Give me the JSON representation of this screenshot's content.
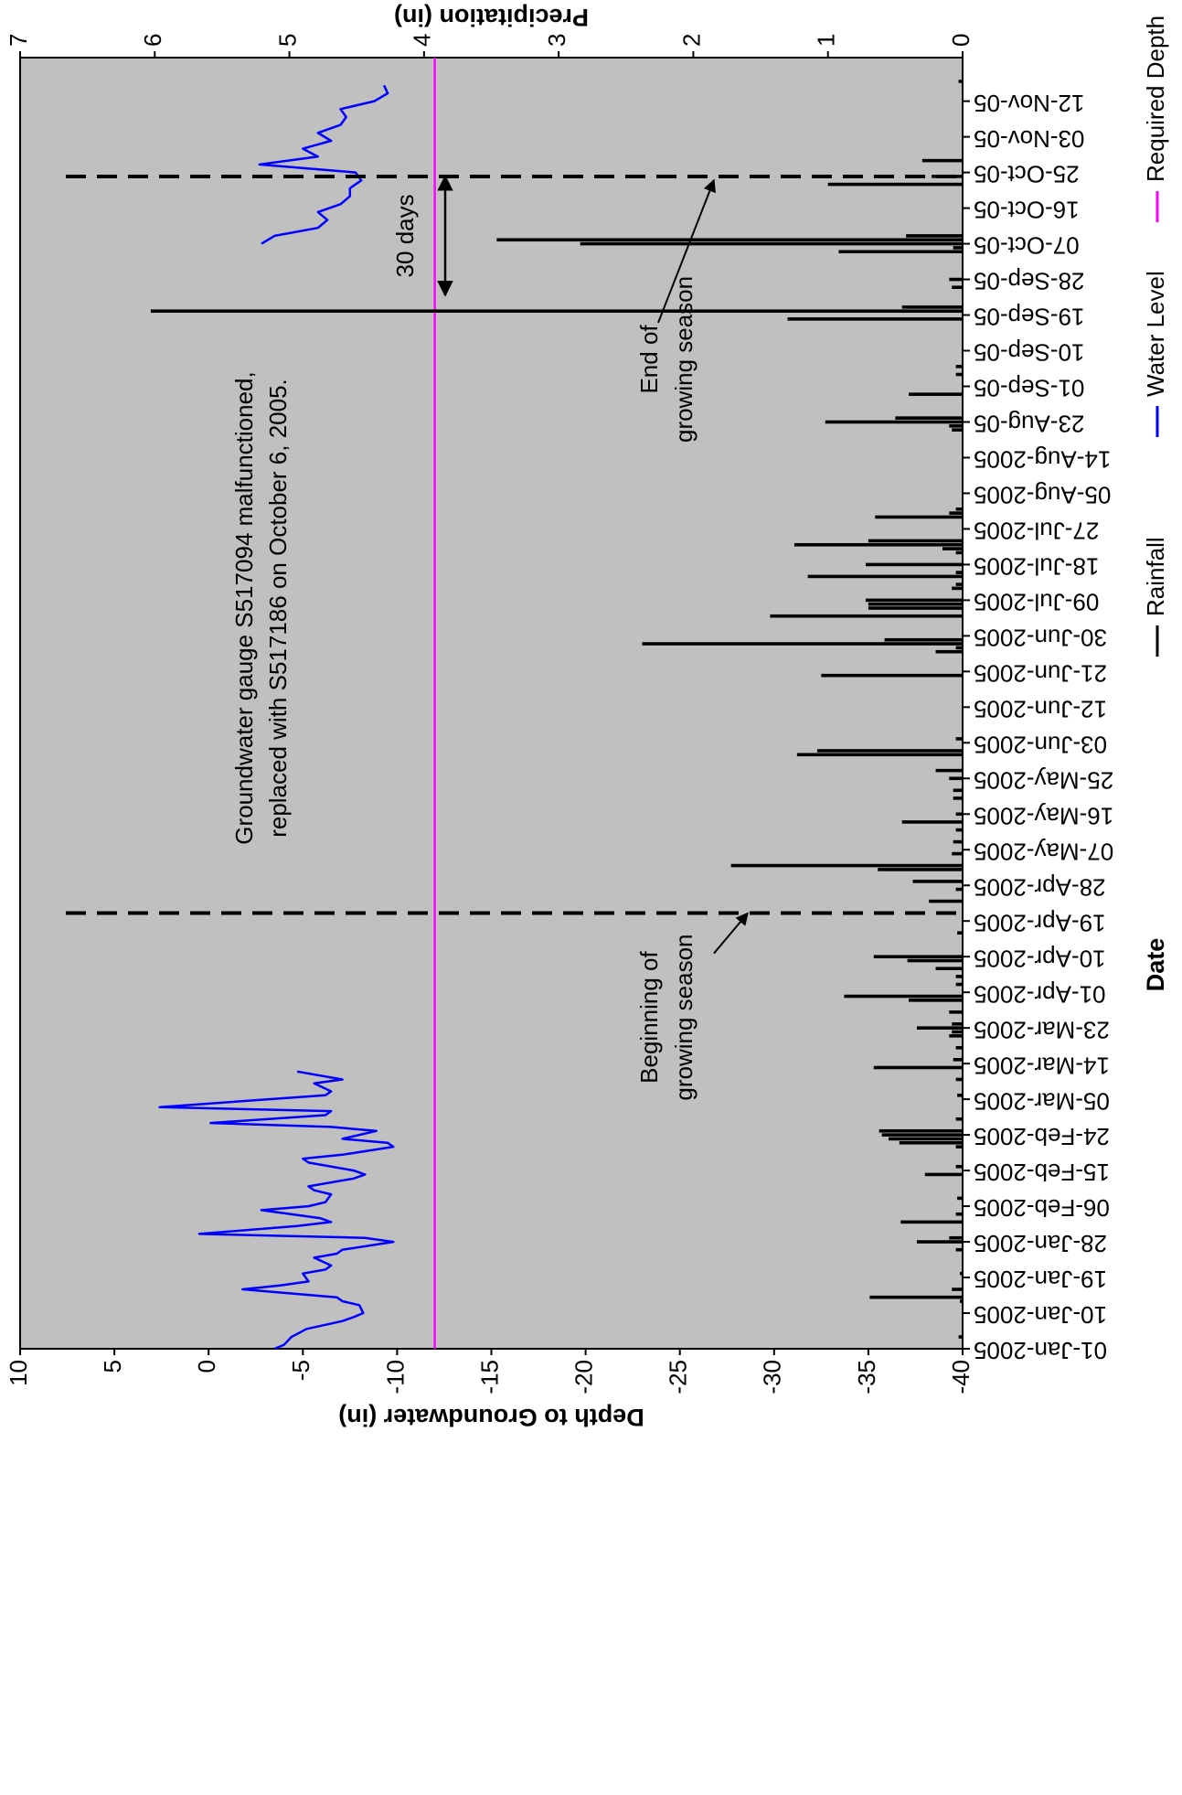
{
  "chart_data": {
    "type": "combo",
    "xlabel": "Date",
    "ylabel": "Depth to Groundwater (in)",
    "y2label": "Precipitation (in)",
    "background": "#c0c0c0",
    "xlim": [
      0,
      326
    ],
    "xticks": [
      {
        "value": 0,
        "label": "01-Jan-2005"
      },
      {
        "value": 9,
        "label": "10-Jan-2005"
      },
      {
        "value": 18,
        "label": "19-Jan-2005"
      },
      {
        "value": 27,
        "label": "28-Jan-2005"
      },
      {
        "value": 36,
        "label": "06-Feb-2005"
      },
      {
        "value": 45,
        "label": "15-Feb-2005"
      },
      {
        "value": 54,
        "label": "24-Feb-2005"
      },
      {
        "value": 63,
        "label": "05-Mar-2005"
      },
      {
        "value": 72,
        "label": "14-Mar-2005"
      },
      {
        "value": 81,
        "label": "23-Mar-2005"
      },
      {
        "value": 90,
        "label": "01-Apr-2005"
      },
      {
        "value": 99,
        "label": "10-Apr-2005"
      },
      {
        "value": 108,
        "label": "19-Apr-2005"
      },
      {
        "value": 117,
        "label": "28-Apr-2005"
      },
      {
        "value": 126,
        "label": "07-May-2005"
      },
      {
        "value": 135,
        "label": "16-May-2005"
      },
      {
        "value": 144,
        "label": "25-May-2005"
      },
      {
        "value": 153,
        "label": "03-Jun-2005"
      },
      {
        "value": 162,
        "label": "12-Jun-2005"
      },
      {
        "value": 171,
        "label": "21-Jun-2005"
      },
      {
        "value": 180,
        "label": "30-Jun-2005"
      },
      {
        "value": 189,
        "label": "09-Jul-2005"
      },
      {
        "value": 198,
        "label": "18-Jul-2005"
      },
      {
        "value": 207,
        "label": "27-Jul-2005"
      },
      {
        "value": 216,
        "label": "05-Aug-2005"
      },
      {
        "value": 225,
        "label": "14-Aug-2005"
      },
      {
        "value": 234,
        "label": "23-Aug-05"
      },
      {
        "value": 243,
        "label": "01-Sep-05"
      },
      {
        "value": 252,
        "label": "10-Sep-05"
      },
      {
        "value": 261,
        "label": "19-Sep-05"
      },
      {
        "value": 270,
        "label": "28-Sep-05"
      },
      {
        "value": 279,
        "label": "07-Oct-05"
      },
      {
        "value": 288,
        "label": "16-Oct-05"
      },
      {
        "value": 297,
        "label": "25-Oct-05"
      },
      {
        "value": 306,
        "label": "03-Nov-05"
      },
      {
        "value": 315,
        "label": "12-Nov-05"
      }
    ],
    "ylim": [
      -40,
      10
    ],
    "yticks": [
      10,
      5,
      0,
      -5,
      -10,
      -15,
      -20,
      -25,
      -30,
      -35,
      -40
    ],
    "y2lim": [
      0,
      7
    ],
    "y2ticks": [
      0,
      1,
      2,
      3,
      4,
      5,
      6,
      7
    ],
    "series": [
      {
        "name": "Rainfall",
        "type": "bar",
        "axis": "y2",
        "color": "#000000",
        "x": [
          3,
          12,
          13,
          15,
          19,
          25,
          27,
          28,
          32,
          34,
          38,
          44,
          46,
          51,
          52,
          53,
          54,
          55,
          58,
          64,
          68,
          71,
          73,
          76,
          79,
          80,
          81,
          82,
          85,
          88,
          89,
          92,
          94,
          96,
          98,
          99,
          105,
          113,
          116,
          118,
          121,
          122,
          125,
          128,
          131,
          133,
          135,
          139,
          141,
          144,
          146,
          150,
          151,
          154,
          170,
          176,
          177,
          178,
          179,
          185,
          187,
          188,
          189,
          192,
          193,
          195,
          196,
          198,
          201,
          202,
          203,
          204,
          210,
          211,
          212,
          232,
          233,
          234,
          235,
          241,
          246,
          248,
          260,
          262,
          263,
          268,
          270,
          277,
          278,
          279,
          280,
          281,
          294,
          296,
          300,
          320
        ],
        "values": [
          0.03,
          0.02,
          0.69,
          0.08,
          0.02,
          0.05,
          0.34,
          0.1,
          0.46,
          0.05,
          0.04,
          0.28,
          0.05,
          0.05,
          0.47,
          0.55,
          0.6,
          0.62,
          0.05,
          0.04,
          0.05,
          0.66,
          0.07,
          0.05,
          0.1,
          0.08,
          0.34,
          0.08,
          0.1,
          0.4,
          0.88,
          0.05,
          0.05,
          0.2,
          0.41,
          0.66,
          0.04,
          0.25,
          0.05,
          0.37,
          0.63,
          1.72,
          0.08,
          0.07,
          0.05,
          0.45,
          0.05,
          0.07,
          0.07,
          0.1,
          0.2,
          1.23,
          1.08,
          0.05,
          1.05,
          0.2,
          0.05,
          2.38,
          0.58,
          1.43,
          0.7,
          0.7,
          0.72,
          0.08,
          0.05,
          1.15,
          0.05,
          0.72,
          0.05,
          0.15,
          1.25,
          0.7,
          0.65,
          0.1,
          0.05,
          0.08,
          0.1,
          1.02,
          0.5,
          0.4,
          0.05,
          0.05,
          1.3,
          6.03,
          0.45,
          0.08,
          0.1,
          0.92,
          0.07,
          2.84,
          3.46,
          0.42,
          1.0,
          0.23,
          0.3,
          0.03
        ]
      },
      {
        "name": "Water Level",
        "type": "line",
        "color": "#0000ff",
        "x": [
          0,
          1,
          3,
          4,
          5,
          7,
          8,
          9,
          11,
          12,
          13,
          15,
          16,
          17,
          19,
          20,
          21,
          23,
          24,
          25,
          27,
          28,
          29,
          31,
          32,
          33,
          35,
          36,
          37,
          39,
          40,
          41,
          43,
          44,
          45,
          47,
          48,
          49,
          51,
          52,
          53,
          55,
          56,
          57,
          59,
          60,
          61,
          63,
          64,
          65,
          67,
          68,
          70,
          150,
          279,
          281,
          283,
          285,
          287,
          289,
          291,
          293,
          295,
          297,
          299,
          301,
          303,
          305,
          307,
          309,
          311,
          313,
          315,
          317,
          319
        ],
        "values": [
          -3.5,
          -4,
          -4.4,
          -4.8,
          -5.2,
          -7.1,
          -7.7,
          -8.2,
          -8,
          -7.1,
          -6.8,
          -1.8,
          -3.8,
          -5.3,
          -5,
          -6.2,
          -6.5,
          -5.6,
          -6.8,
          -7.1,
          -9.8,
          -8.3,
          0.5,
          -4.7,
          -6.5,
          -5.9,
          -2.8,
          -5.3,
          -6.2,
          -6.5,
          -5.6,
          -5.3,
          -7.7,
          -8.3,
          -7.7,
          -5.3,
          -5,
          -7.1,
          -9.8,
          -9.5,
          -7.1,
          -8.9,
          -6.5,
          -0.1,
          -6.2,
          -6.5,
          2.6,
          -3.2,
          -6.2,
          -6.5,
          -5.6,
          -7.1,
          -4.7,
          null,
          -2.8,
          -3.5,
          -5.8,
          -6.3,
          -5.8,
          -7,
          -7.5,
          -7.5,
          -8.1,
          -7.8,
          -2.7,
          -5.8,
          -5,
          -6.5,
          -5.8,
          -7,
          -7.3,
          -7,
          -8.8,
          -9.5,
          -9.3
        ]
      },
      {
        "name": "Required Depth",
        "type": "line",
        "color": "#ff00ff",
        "x": [
          0,
          326
        ],
        "values": [
          -12,
          -12
        ]
      }
    ],
    "annotations": [
      {
        "text": [
          "Groundwater gauge S517094 malfunctioned,",
          "replaced with S517186 on October 6, 2005."
        ]
      }
    ],
    "markers": [
      {
        "x": 110,
        "label": [
          "Beginning of",
          "growing season"
        ]
      },
      {
        "x": 296,
        "label": [
          "End of",
          "growing season"
        ]
      }
    ],
    "span": {
      "x": [
        266,
        296
      ],
      "label": "30 days"
    }
  }
}
